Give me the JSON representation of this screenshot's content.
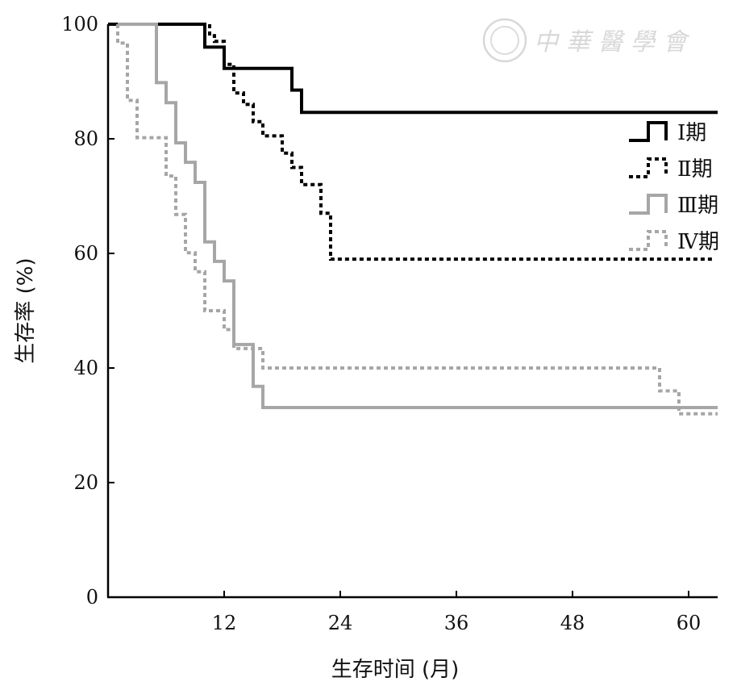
{
  "watermark": {
    "text": "中華醫學會"
  },
  "chart_data": {
    "type": "line",
    "xlabel": "生存时间 (月)",
    "ylabel": "生存率 (%)",
    "xlim": [
      0,
      63
    ],
    "ylim": [
      0,
      100
    ],
    "xticks": [
      12,
      24,
      36,
      48,
      60
    ],
    "yticks": [
      0,
      20,
      40,
      60,
      80,
      100
    ],
    "legend_position": "right",
    "series": [
      {
        "name": "Ⅰ期",
        "color": "#000000",
        "dash": "solid",
        "steps": [
          [
            0,
            100
          ],
          [
            10,
            100
          ],
          [
            10,
            96
          ],
          [
            12,
            96
          ],
          [
            12,
            92.3
          ],
          [
            19,
            92.3
          ],
          [
            19,
            88.5
          ],
          [
            20,
            88.5
          ],
          [
            20,
            84.6
          ],
          [
            63,
            84.6
          ]
        ]
      },
      {
        "name": "Ⅱ期",
        "color": "#000000",
        "dash": "dotted",
        "steps": [
          [
            0,
            100
          ],
          [
            10.5,
            100
          ],
          [
            10.5,
            98
          ],
          [
            11,
            98
          ],
          [
            11,
            97
          ],
          [
            12,
            97
          ],
          [
            12,
            93
          ],
          [
            13,
            93
          ],
          [
            13,
            88
          ],
          [
            14,
            88
          ],
          [
            14,
            86
          ],
          [
            15,
            86
          ],
          [
            15,
            83
          ],
          [
            16,
            83
          ],
          [
            16,
            80.5
          ],
          [
            18,
            80.5
          ],
          [
            18,
            77.5
          ],
          [
            19,
            77.5
          ],
          [
            19,
            75
          ],
          [
            20,
            75
          ],
          [
            20,
            72
          ],
          [
            22,
            72
          ],
          [
            22,
            67
          ],
          [
            23,
            67
          ],
          [
            23,
            59
          ],
          [
            62.5,
            59
          ]
        ]
      },
      {
        "name": "Ⅲ期",
        "color": "#a6a6a6",
        "dash": "solid",
        "steps": [
          [
            1,
            100
          ],
          [
            5,
            100
          ],
          [
            5,
            89.8
          ],
          [
            6,
            89.8
          ],
          [
            6,
            86.3
          ],
          [
            7,
            86.3
          ],
          [
            7,
            79.3
          ],
          [
            8,
            79.3
          ],
          [
            8,
            75.9
          ],
          [
            9,
            75.9
          ],
          [
            9,
            72.4
          ],
          [
            10,
            72.4
          ],
          [
            10,
            62
          ],
          [
            11,
            62
          ],
          [
            11,
            58.6
          ],
          [
            12,
            58.6
          ],
          [
            12,
            55.2
          ],
          [
            13,
            55.2
          ],
          [
            13,
            44.1
          ],
          [
            15,
            44.1
          ],
          [
            15,
            36.8
          ],
          [
            16,
            36.8
          ],
          [
            16,
            33.1
          ],
          [
            63,
            33.1
          ]
        ]
      },
      {
        "name": "Ⅳ期",
        "color": "#a6a6a6",
        "dash": "dotted",
        "steps": [
          [
            1,
            100
          ],
          [
            1,
            96.7
          ],
          [
            2,
            96.7
          ],
          [
            2,
            86.7
          ],
          [
            3,
            86.7
          ],
          [
            3,
            80.2
          ],
          [
            6,
            80.2
          ],
          [
            6,
            73.5
          ],
          [
            7,
            73.5
          ],
          [
            7,
            66.8
          ],
          [
            8,
            66.8
          ],
          [
            8,
            60.1
          ],
          [
            9,
            60.1
          ],
          [
            9,
            56.8
          ],
          [
            10,
            56.8
          ],
          [
            10,
            50
          ],
          [
            12,
            50
          ],
          [
            12,
            46.7
          ],
          [
            13,
            46.7
          ],
          [
            13,
            43.4
          ],
          [
            16,
            43.4
          ],
          [
            16,
            40
          ],
          [
            57,
            40
          ],
          [
            57,
            36
          ],
          [
            59,
            36
          ],
          [
            59,
            32
          ],
          [
            63,
            32
          ]
        ]
      }
    ]
  }
}
